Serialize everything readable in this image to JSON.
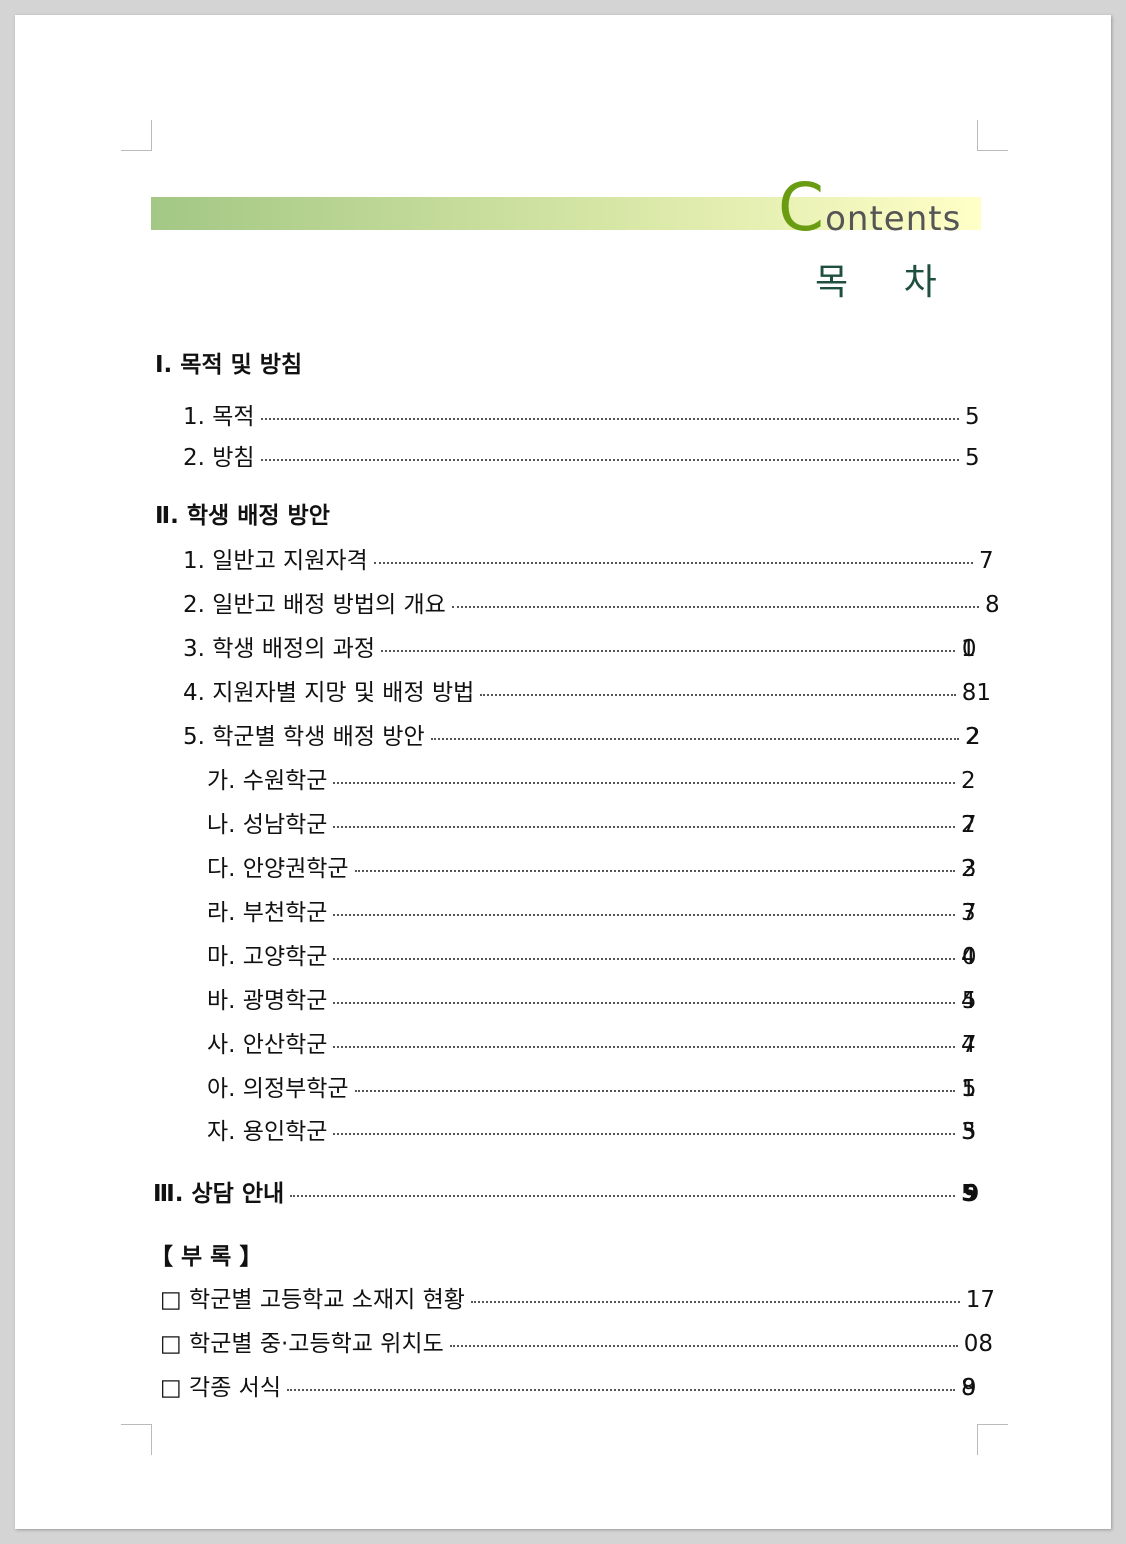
{
  "header": {
    "title_initial": "C",
    "title_rest": "ontents",
    "subtitle": "목 차"
  },
  "toc": [
    {
      "label": "Ⅰ. 목적 및 방침",
      "page": ""
    },
    {
      "label": "1. 목적",
      "page": "5"
    },
    {
      "label": "2. 방침",
      "page": "5"
    },
    {
      "label": "Ⅱ. 학생 배정 방안",
      "page": ""
    },
    {
      "label": "1. 일반고 지원자격",
      "page": "7"
    },
    {
      "label": "2. 일반고 배정 방법의 개요",
      "page": "8"
    },
    {
      "label": "3. 학생 배정의 과정",
      "page": "10"
    },
    {
      "label": "4. 지원자별 지망 및 배정 방법",
      "page": "81"
    },
    {
      "label": "5. 학군별 학생 배정 방안",
      "page": "22"
    },
    {
      "label": "가. 수원학군",
      "page": "2"
    },
    {
      "label": "나. 성남학군",
      "page": "27"
    },
    {
      "label": "다. 안양권학군",
      "page": "23"
    },
    {
      "label": "라. 부천학군",
      "page": "37"
    },
    {
      "label": "마. 고양학군",
      "page": "40"
    },
    {
      "label": "바. 광명학군",
      "page": "45"
    },
    {
      "label": "사. 안산학군",
      "page": "47"
    },
    {
      "label": "아. 의정부학군",
      "page": "15"
    },
    {
      "label": "자. 용인학군",
      "page": "35"
    },
    {
      "label": "Ⅲ. 상담 안내",
      "page": "59"
    },
    {
      "label": "【 부 록 】",
      "page": ""
    },
    {
      "label": "□ 학군별 고등학교 소재지 현황",
      "page": "17"
    },
    {
      "label": "□ 학군별 중·고등학교 위치도",
      "page": "08"
    },
    {
      "label": "□ 각종 서식",
      "page": "89"
    }
  ]
}
